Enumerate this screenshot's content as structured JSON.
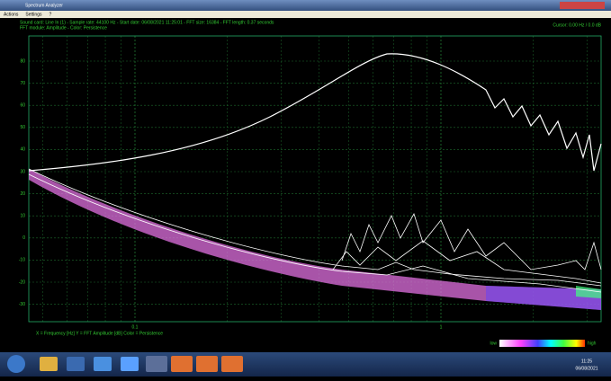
{
  "window": {
    "title": "Spectrum Analyzer",
    "menu": [
      "Actions",
      "Settings",
      "?"
    ]
  },
  "info": {
    "line1": "Sound card: Line In (1) - Sample rate: 44100 Hz - Start date: 06/08/2021 11:25:01 - FFT size: 16384 - FFT length: 0.37 seconds",
    "line2": "FFT module: Amplitude - Color: Persistence",
    "top_right": "Cursor: 0.00 Hz / 0.0 dB"
  },
  "plot": {
    "y_labels": [
      "80",
      "70",
      "60",
      "50",
      "40",
      "30",
      "20",
      "10",
      "0",
      "-10",
      "-20",
      "-30"
    ],
    "x_labels": [
      "0.1",
      "1"
    ],
    "axis_caption": "X = Frequency [Hz]   Y = FFT Amplitude [dB]   Color = Persistence",
    "scale_low": "low",
    "scale_high": "high"
  },
  "taskbar": {
    "time": "11:25",
    "date": "06/08/2021"
  }
}
